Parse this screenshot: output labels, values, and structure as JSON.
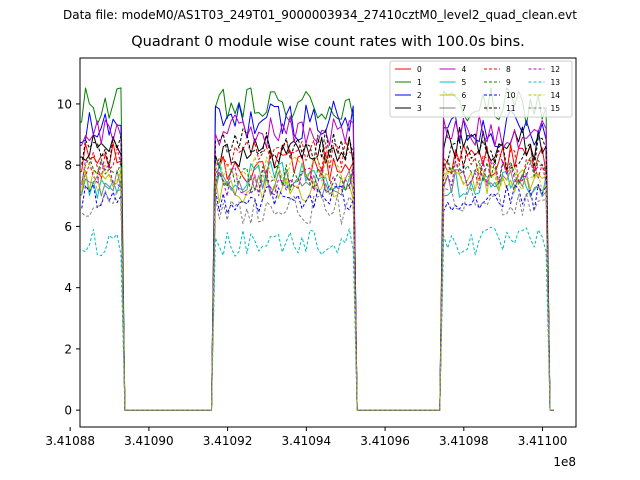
{
  "suptitle": "Data file: modeM0/AS1T03_249T01_9000003934_27410cztM0_level2_quad_clean.evt",
  "chart_data": {
    "type": "line",
    "title": "Quadrant 0 module wise count rates with 100.0s bins.",
    "xlabel": "",
    "ylabel": "",
    "x_offset_label": "1e8",
    "xlim": [
      3.4108825,
      3.4110085
    ],
    "ylim": [
      -0.55,
      11.5
    ],
    "x_ticks": [
      3.41088,
      3.4109,
      3.41092,
      3.41094,
      3.41096,
      3.41098,
      3.411
    ],
    "x_tick_labels": [
      "3.41088",
      "3.41090",
      "3.41092",
      "3.41094",
      "3.41096",
      "3.41098",
      "3.41100"
    ],
    "y_ticks": [
      0,
      2,
      4,
      6,
      8,
      10
    ],
    "y_tick_labels": [
      "0",
      "2",
      "4",
      "6",
      "8",
      "10"
    ],
    "x_units": "1e8 s",
    "bin_size_s": 100,
    "gti": [
      [
        341088390,
        341089330
      ],
      [
        341091630,
        341095270
      ],
      [
        341097470,
        341100130
      ]
    ],
    "legend_position": "upper right",
    "legend_ncol": 4,
    "series": [
      {
        "name": "0",
        "color": "#ff0000",
        "dashed": false,
        "level": 8.2,
        "amp": 0.35
      },
      {
        "name": "1",
        "color": "#008000",
        "dashed": false,
        "level": 9.9,
        "amp": 0.4
      },
      {
        "name": "2",
        "color": "#0000ff",
        "dashed": false,
        "level": 9.2,
        "amp": 0.4
      },
      {
        "name": "3",
        "color": "#000000",
        "dashed": false,
        "level": 8.7,
        "amp": 0.35
      },
      {
        "name": "4",
        "color": "#bf00bf",
        "dashed": false,
        "level": 9.1,
        "amp": 0.35
      },
      {
        "name": "5",
        "color": "#00bfbf",
        "dashed": false,
        "level": 7.4,
        "amp": 0.3
      },
      {
        "name": "6",
        "color": "#bfbf00",
        "dashed": false,
        "level": 7.5,
        "amp": 0.3
      },
      {
        "name": "7",
        "color": "#808080",
        "dashed": false,
        "level": 7.4,
        "amp": 0.3
      },
      {
        "name": "8",
        "color": "#ff0000",
        "dashed": true,
        "level": 8.0,
        "amp": 0.35
      },
      {
        "name": "9",
        "color": "#008000",
        "dashed": true,
        "level": 7.8,
        "amp": 0.3
      },
      {
        "name": "10",
        "color": "#0000ff",
        "dashed": true,
        "level": 6.9,
        "amp": 0.3
      },
      {
        "name": "11",
        "color": "#000000",
        "dashed": true,
        "level": 8.4,
        "amp": 0.35
      },
      {
        "name": "12",
        "color": "#bf00bf",
        "dashed": true,
        "level": 7.7,
        "amp": 0.3
      },
      {
        "name": "13",
        "color": "#00bfbf",
        "dashed": true,
        "level": 5.5,
        "amp": 0.3
      },
      {
        "name": "14",
        "color": "#bfbf00",
        "dashed": true,
        "level": 7.6,
        "amp": 0.3
      },
      {
        "name": "15",
        "color": "#808080",
        "dashed": true,
        "level": 6.8,
        "amp": 0.3
      }
    ]
  }
}
